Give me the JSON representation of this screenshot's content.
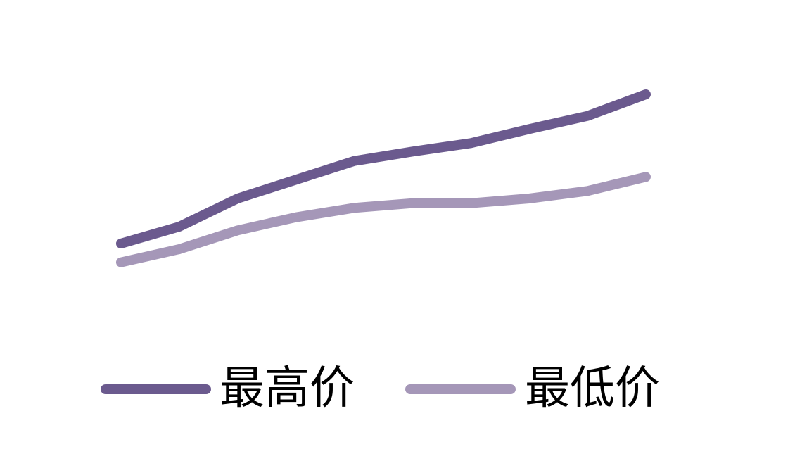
{
  "chart_data": {
    "type": "line",
    "x": [
      "1",
      "2",
      "3",
      "4",
      "5",
      "6",
      "7",
      "8",
      "9",
      "10"
    ],
    "series": [
      {
        "name": "最高价",
        "color": "#6b5a8e",
        "values": [
          334,
          316,
          286,
          266,
          246,
          236,
          227,
          212,
          198,
          175
        ]
      },
      {
        "name": "最低价",
        "color": "#a597b8",
        "values": [
          354,
          340,
          320,
          306,
          296,
          291,
          291,
          286,
          278,
          263
        ]
      }
    ],
    "ylim": [
      100,
      400
    ],
    "axes_visible": false,
    "grid": false,
    "legend": "bottom"
  }
}
